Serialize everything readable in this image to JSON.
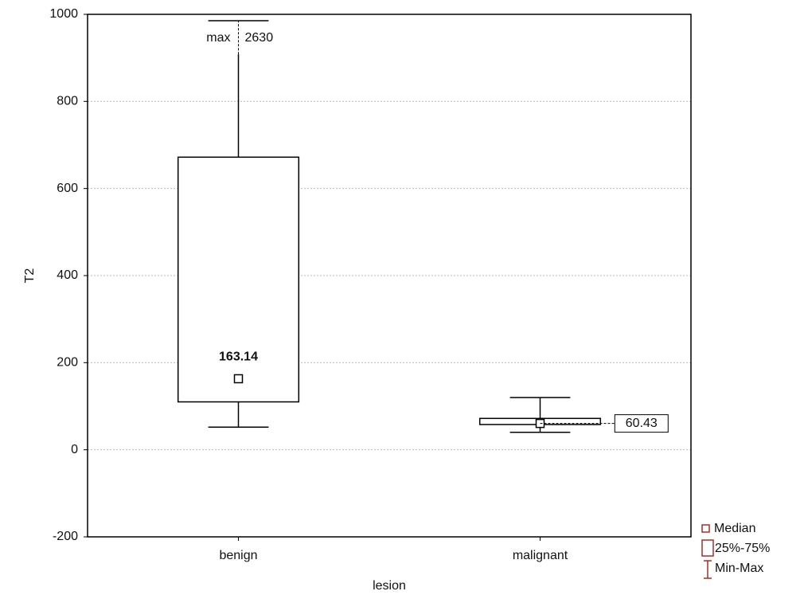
{
  "chart_data": {
    "type": "box",
    "x_label": "lesion",
    "y_label": "T2",
    "categories": [
      "benign",
      "malignant"
    ],
    "min": [
      52,
      40
    ],
    "q1": [
      110,
      58
    ],
    "median": [
      163.14,
      60.43
    ],
    "q3": [
      672,
      72
    ],
    "max": [
      2630,
      120
    ],
    "annotation": "max",
    "ylim": [
      -200,
      1000
    ],
    "yticks": [
      -200,
      0,
      200,
      400,
      600,
      800,
      1000
    ],
    "grid": true,
    "color": "#000000",
    "legend_color": "#a0302a",
    "legend": [
      "Median",
      "25%-75%",
      "Min-Max"
    ]
  }
}
